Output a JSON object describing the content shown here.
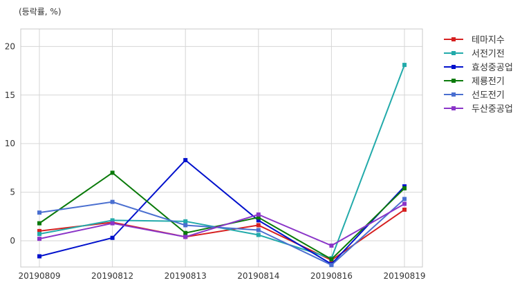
{
  "chart_data": {
    "type": "line",
    "unit_label": "(등락률, %)",
    "categories": [
      "20190809",
      "20190812",
      "20190813",
      "20190814",
      "20190816",
      "20190819"
    ],
    "ylim": [
      -2.7,
      21.8
    ],
    "yticks": [
      0,
      5,
      10,
      15,
      20
    ],
    "grid": true,
    "legend_position": "top-right-outside",
    "series": [
      {
        "name": "테마지수",
        "color": "#d62020",
        "values": [
          1.0,
          1.9,
          0.4,
          1.6,
          -2.0,
          3.2
        ]
      },
      {
        "name": "서전기전",
        "color": "#22aaaa",
        "values": [
          0.7,
          2.1,
          2.0,
          0.6,
          -1.8,
          18.1
        ]
      },
      {
        "name": "효성중공업",
        "color": "#0010cc",
        "values": [
          -1.6,
          0.3,
          8.3,
          2.1,
          -2.4,
          5.6
        ]
      },
      {
        "name": "제룡전기",
        "color": "#0a7a0a",
        "values": [
          1.8,
          7.0,
          0.8,
          2.4,
          -1.9,
          5.4
        ]
      },
      {
        "name": "선도전기",
        "color": "#4a6fd0",
        "values": [
          2.9,
          4.0,
          1.6,
          1.1,
          -2.5,
          4.3
        ]
      },
      {
        "name": "두산중공업",
        "color": "#8a35c8",
        "values": [
          0.2,
          1.8,
          0.4,
          2.7,
          -0.5,
          3.8
        ]
      }
    ]
  }
}
